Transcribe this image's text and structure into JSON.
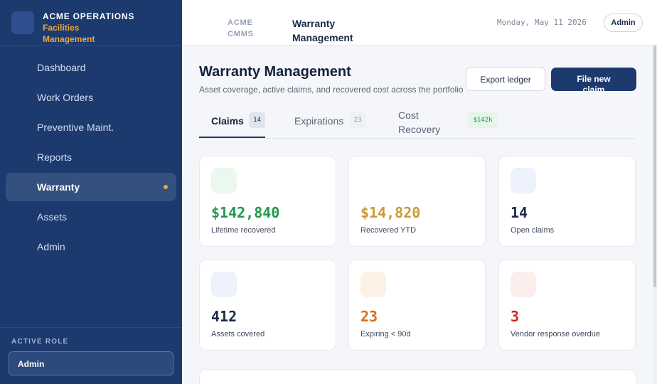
{
  "brand": {
    "line1": "ACME OPERATIONS",
    "line2": "Facilities Management",
    "accent": "#e9a93b"
  },
  "nav": [
    {
      "label": "Dashboard",
      "active": false
    },
    {
      "label": "Work Orders",
      "active": false
    },
    {
      "label": "Preventive Maint.",
      "active": false
    },
    {
      "label": "Reports",
      "active": false
    },
    {
      "label": "Warranty",
      "active": true
    },
    {
      "label": "Assets",
      "active": false
    },
    {
      "label": "Admin",
      "active": false
    }
  ],
  "role": {
    "caption": "ACTIVE ROLE",
    "value": "Admin"
  },
  "topbar": {
    "breadcrumb_root": "ACME CMMS",
    "breadcrumb_current": "Warranty Management",
    "date": "Monday, May 11 2026",
    "user": "Admin"
  },
  "header": {
    "title": "Warranty Management",
    "subtitle": "Asset coverage, active claims, and recovered cost across the portfolio",
    "export_label": "Export ledger",
    "primary_label": "File new claim"
  },
  "tabs": [
    {
      "label": "Claims",
      "badge": "14",
      "active": true
    },
    {
      "label": "Expirations",
      "badge": "23",
      "active": false
    },
    {
      "label": "Cost Recovery",
      "badge": "$142k",
      "active": false
    }
  ],
  "kpis": [
    {
      "value": "$142,840",
      "label": "Lifetime recovered",
      "value_color": "#1f9a4b",
      "icon_bg": "#eaf8ee"
    },
    {
      "value": "$14,820",
      "label": "Recovered YTD",
      "value_color": "#c99a3a",
      "icon_bg": "#ffffff"
    },
    {
      "value": "14",
      "label": "Open claims",
      "value_color": "#1b2a4a",
      "icon_bg": "#edf2fd"
    },
    {
      "value": "412",
      "label": "Assets covered",
      "value_color": "#1b2a4a",
      "icon_bg": "#edf2fd"
    },
    {
      "value": "23",
      "label": "Expiring < 90d",
      "value_color": "#db6a1a",
      "icon_bg": "#fdf1e6"
    },
    {
      "value": "3",
      "label": "Vendor response overdue",
      "value_color": "#cc2b22",
      "icon_bg": "#fdeeee"
    }
  ],
  "colors": {
    "sidebar": "#1d3a6f",
    "primary": "#1d3a6f",
    "page_bg": "#f5f6f9"
  }
}
